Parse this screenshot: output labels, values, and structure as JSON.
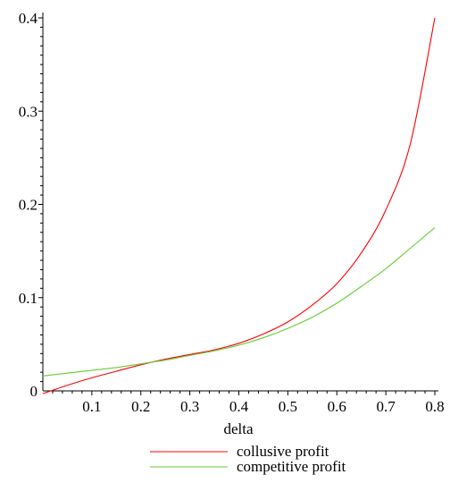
{
  "chart_data": {
    "type": "line",
    "title": "",
    "xlabel": "delta",
    "ylabel": "",
    "xlim": [
      0,
      0.8
    ],
    "ylim": [
      0,
      0.4
    ],
    "x_ticks": [
      "0.1",
      "0.2",
      "0.3",
      "0.4",
      "0.5",
      "0.6",
      "0.7",
      "0.8"
    ],
    "y_ticks": [
      "0",
      "0.1",
      "0.2",
      "0.3",
      "0.4"
    ],
    "grid": false,
    "legend_position": "bottom-center",
    "series": [
      {
        "name": "collusive profit",
        "color": "#ff0000",
        "points": [
          [
            0.0,
            -0.003
          ],
          [
            0.05,
            0.006
          ],
          [
            0.1,
            0.014
          ],
          [
            0.15,
            0.021
          ],
          [
            0.2,
            0.028
          ],
          [
            0.25,
            0.034
          ],
          [
            0.3,
            0.039
          ],
          [
            0.35,
            0.044
          ],
          [
            0.4,
            0.051
          ],
          [
            0.45,
            0.061
          ],
          [
            0.5,
            0.074
          ],
          [
            0.55,
            0.092
          ],
          [
            0.6,
            0.115
          ],
          [
            0.65,
            0.148
          ],
          [
            0.7,
            0.194
          ],
          [
            0.75,
            0.265
          ],
          [
            0.8,
            0.4
          ]
        ]
      },
      {
        "name": "competitive profit",
        "color": "#66cc33",
        "points": [
          [
            0.0,
            0.016
          ],
          [
            0.05,
            0.019
          ],
          [
            0.1,
            0.022
          ],
          [
            0.15,
            0.025
          ],
          [
            0.2,
            0.029
          ],
          [
            0.25,
            0.033
          ],
          [
            0.3,
            0.038
          ],
          [
            0.35,
            0.043
          ],
          [
            0.4,
            0.049
          ],
          [
            0.45,
            0.057
          ],
          [
            0.5,
            0.067
          ],
          [
            0.55,
            0.079
          ],
          [
            0.6,
            0.094
          ],
          [
            0.65,
            0.112
          ],
          [
            0.7,
            0.131
          ],
          [
            0.75,
            0.153
          ],
          [
            0.8,
            0.175
          ]
        ]
      }
    ]
  }
}
